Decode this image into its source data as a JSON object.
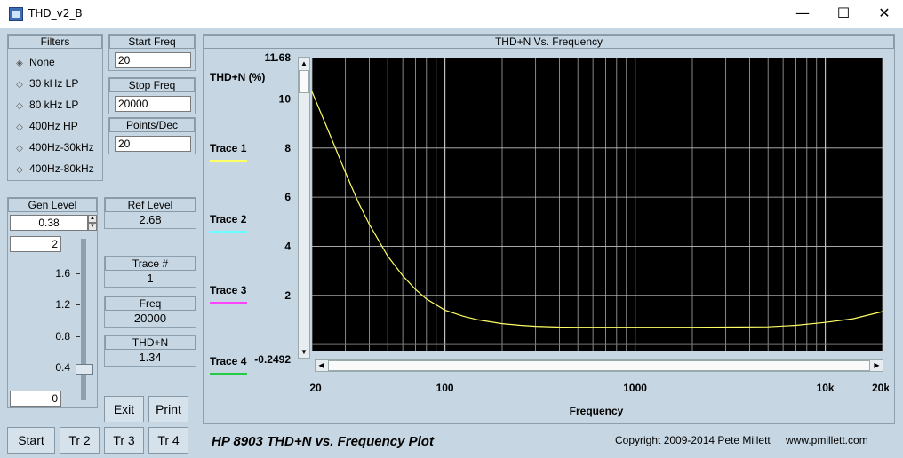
{
  "window": {
    "title": "THD_v2_B",
    "minimize_glyph": "—",
    "maximize_glyph": "☐",
    "close_glyph": "✕"
  },
  "filters": {
    "label": "Filters",
    "options": [
      "None",
      "30 kHz LP",
      "80 kHz LP",
      "400Hz HP",
      "400Hz-30kHz",
      "400Hz-80kHz"
    ],
    "selected": "None"
  },
  "start_freq": {
    "label": "Start Freq",
    "value": "20"
  },
  "stop_freq": {
    "label": "Stop Freq",
    "value": "20000"
  },
  "points_dec": {
    "label": "Points/Dec",
    "value": "20"
  },
  "gen_level": {
    "label": "Gen Level",
    "value": "0.38",
    "slider_max": "2",
    "slider_min": "0",
    "ticks": [
      "1.6",
      "1.2",
      "0.8",
      "0.4"
    ],
    "slider_value": 0.38
  },
  "readouts": [
    {
      "label": "Ref Level",
      "value": "2.68"
    },
    {
      "label": "Trace #",
      "value": "1"
    },
    {
      "label": "Freq",
      "value": "20000"
    },
    {
      "label": "THD+N",
      "value": "1.34"
    }
  ],
  "buttons": {
    "exit": "Exit",
    "print": "Print",
    "start": "Start",
    "tr2": "Tr 2",
    "tr3": "Tr 3",
    "tr4": "Tr 4"
  },
  "plot": {
    "title": "THD+N Vs. Frequency",
    "ylabel": "THD+N (%)",
    "xlabel": "Frequency",
    "traces": [
      {
        "name": "Trace 1",
        "color": "#ffff66"
      },
      {
        "name": "Trace 2",
        "color": "#66ffff"
      },
      {
        "name": "Trace 3",
        "color": "#ff44ff"
      },
      {
        "name": "Trace 4",
        "color": "#22cc44"
      }
    ]
  },
  "footer": {
    "title": "HP 8903 THD+N vs. Frequency Plot",
    "copyright": "Copyright 2009-2014 Pete Millett",
    "website": "www.pmillett.com"
  },
  "chart_data": {
    "type": "line",
    "title": "THD+N Vs. Frequency",
    "xlabel": "Frequency",
    "ylabel": "THD+N (%)",
    "x_scale": "log",
    "xlim": [
      20,
      20000
    ],
    "ylim": [
      -0.2492,
      11.68
    ],
    "y_max_label": "11.68",
    "y_min_label": "-0.2492",
    "x_ticks": [
      "20",
      "100",
      "1000",
      "10k",
      "20k"
    ],
    "x_tick_values": [
      20,
      100,
      1000,
      10000,
      20000
    ],
    "y_ticks": [
      "10",
      "8",
      "6",
      "4",
      "2"
    ],
    "y_tick_values": [
      10,
      8,
      6,
      4,
      2
    ],
    "grid": true,
    "series": [
      {
        "name": "Trace 1",
        "color": "#ffff66",
        "x": [
          20,
          25,
          30,
          35,
          40,
          50,
          60,
          70,
          80,
          100,
          125,
          150,
          200,
          250,
          300,
          400,
          500,
          700,
          1000,
          2000,
          3000,
          5000,
          7000,
          10000,
          14000,
          20000
        ],
        "y": [
          10.3,
          8.5,
          7.0,
          5.8,
          4.9,
          3.6,
          2.8,
          2.25,
          1.85,
          1.4,
          1.15,
          1.0,
          0.85,
          0.78,
          0.74,
          0.71,
          0.7,
          0.7,
          0.7,
          0.7,
          0.71,
          0.72,
          0.78,
          0.9,
          1.05,
          1.34
        ]
      }
    ]
  }
}
